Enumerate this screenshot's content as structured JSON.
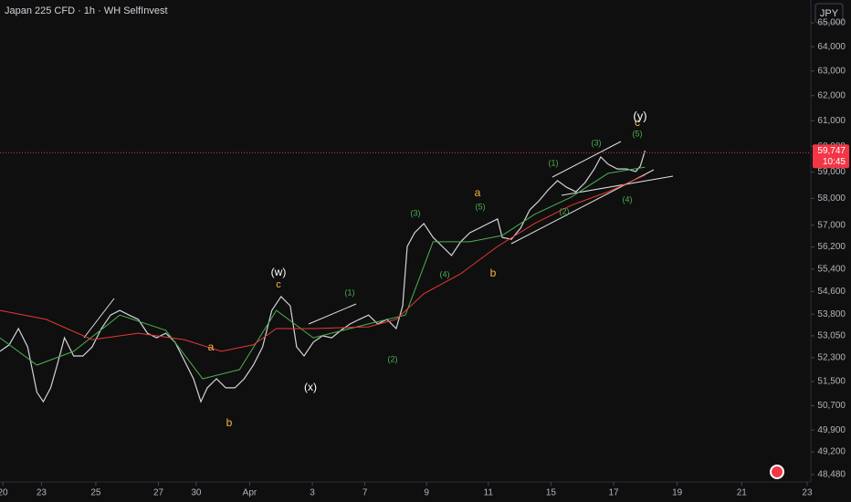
{
  "chart_data": {
    "type": "line",
    "title": "Japan 225 CFD · 1h · WH SelfInvest",
    "currency": "JPY",
    "log_scale": true,
    "xlim": [
      0,
      880
    ],
    "xticks": [
      {
        "value": 3,
        "label": "20"
      },
      {
        "value": 45,
        "label": "23"
      },
      {
        "value": 104,
        "label": "25"
      },
      {
        "value": 172,
        "label": "27"
      },
      {
        "value": 213,
        "label": "30"
      },
      {
        "value": 271,
        "label": "Apr"
      },
      {
        "value": 339,
        "label": "3"
      },
      {
        "value": 396,
        "label": "7"
      },
      {
        "value": 463,
        "label": "9"
      },
      {
        "value": 530,
        "label": "11"
      },
      {
        "value": 598,
        "label": "15"
      },
      {
        "value": 666,
        "label": "17"
      },
      {
        "value": 735,
        "label": "19"
      },
      {
        "value": 805,
        "label": "21"
      },
      {
        "value": 876,
        "label": "23"
      }
    ],
    "ylim": [
      48250,
      65970
    ],
    "yticks": [
      {
        "value": 48480,
        "label": "48,480"
      },
      {
        "value": 49200,
        "label": "49,200"
      },
      {
        "value": 49900,
        "label": "49,900"
      },
      {
        "value": 50700,
        "label": "50,700"
      },
      {
        "value": 51500,
        "label": "51,500"
      },
      {
        "value": 52300,
        "label": "52,300"
      },
      {
        "value": 53050,
        "label": "53,050"
      },
      {
        "value": 53800,
        "label": "53,800"
      },
      {
        "value": 54600,
        "label": "54,600"
      },
      {
        "value": 55400,
        "label": "55,400"
      },
      {
        "value": 56200,
        "label": "56,200"
      },
      {
        "value": 57000,
        "label": "57,000"
      },
      {
        "value": 58000,
        "label": "58,000"
      },
      {
        "value": 59000,
        "label": "59,000"
      },
      {
        "value": 60000,
        "label": "60,000"
      },
      {
        "value": 61000,
        "label": "61,000"
      },
      {
        "value": 62000,
        "label": "62,000"
      },
      {
        "value": 63000,
        "label": "63,000"
      },
      {
        "value": 64000,
        "label": "64,000"
      },
      {
        "value": 65000,
        "label": "65,000"
      }
    ],
    "series": [
      {
        "color": "#d1d4dc",
        "x": [
          0,
          10,
          20,
          30,
          40,
          47,
          55,
          62,
          70,
          80,
          90,
          100,
          110,
          120,
          130,
          140,
          150,
          160,
          170,
          180,
          190,
          200,
          210,
          218,
          225,
          235,
          245,
          255,
          265,
          275,
          285,
          295,
          305,
          315,
          322,
          330,
          340,
          350,
          360,
          370,
          380,
          390,
          400,
          410,
          420,
          430,
          437,
          442,
          450,
          460,
          470,
          480,
          490,
          500,
          510,
          520,
          530,
          540,
          545,
          555,
          565,
          575,
          585,
          595,
          605,
          615,
          625,
          635,
          645,
          652,
          660,
          670,
          680,
          690,
          695,
          700
        ],
        "values": [
          52520,
          52740,
          53300,
          52670,
          51140,
          50830,
          51290,
          52050,
          52980,
          52360,
          52360,
          52670,
          53300,
          53770,
          53930,
          53770,
          53620,
          53140,
          52980,
          53140,
          52830,
          52210,
          51590,
          50830,
          51290,
          51590,
          51290,
          51290,
          51590,
          52050,
          52670,
          53930,
          54420,
          54090,
          52670,
          52360,
          52830,
          53050,
          52980,
          53240,
          53460,
          53620,
          53770,
          53460,
          53620,
          53300,
          54090,
          56220,
          56720,
          57060,
          56550,
          56220,
          55890,
          56390,
          56720,
          56890,
          57060,
          57230,
          56550,
          56480,
          56890,
          57570,
          57910,
          58320,
          58670,
          58420,
          58250,
          58600,
          59120,
          59580,
          59300,
          59120,
          59120,
          59020,
          59230,
          59830
        ]
      },
      {
        "color": "#4caf50",
        "x": [
          0,
          40,
          80,
          130,
          180,
          220,
          260,
          300,
          340,
          400,
          440,
          470,
          510,
          545,
          580,
          620,
          660,
          700
        ],
        "values": [
          52980,
          52050,
          52520,
          53770,
          53240,
          51590,
          51900,
          53930,
          52980,
          53460,
          53770,
          56390,
          56390,
          56620,
          57400,
          58050,
          58950,
          59190
        ]
      },
      {
        "color": "#e53935",
        "x": [
          0,
          50,
          100,
          150,
          200,
          240,
          275,
          300,
          340,
          400,
          430,
          460,
          500,
          540,
          580,
          620,
          660,
          700
        ],
        "values": [
          53930,
          53620,
          52920,
          53140,
          52920,
          52520,
          52740,
          53300,
          53300,
          53360,
          53620,
          54520,
          55230,
          56220,
          57060,
          57740,
          58250,
          58880
        ]
      }
    ],
    "last_price": {
      "value": 59747,
      "label": "59,747",
      "time": "10:45",
      "color": "#f23645"
    },
    "annotations": [
      {
        "text": "(w)",
        "color": "#ffffff"
      },
      {
        "text": "c",
        "color": "#f5b642"
      },
      {
        "text": "a",
        "color": "#f5b642"
      },
      {
        "text": "b",
        "color": "#f5b642"
      },
      {
        "text": "(x)",
        "color": "#ffffff"
      },
      {
        "text": "(1)",
        "color": "#4caf50"
      },
      {
        "text": "(2)",
        "color": "#4caf50"
      },
      {
        "text": "(3)",
        "color": "#4caf50"
      },
      {
        "text": "(4)",
        "color": "#4caf50"
      },
      {
        "text": "(5)",
        "color": "#4caf50"
      },
      {
        "text": "a",
        "color": "#f5b642"
      },
      {
        "text": "b",
        "color": "#f5b642"
      },
      {
        "text": "(1)",
        "color": "#4caf50"
      },
      {
        "text": "(3)",
        "color": "#4caf50"
      },
      {
        "text": "(2)",
        "color": "#4caf50"
      },
      {
        "text": "(4)",
        "color": "#4caf50"
      },
      {
        "text": "(5)",
        "color": "#4caf50"
      },
      {
        "text": "c",
        "color": "#f5b642"
      },
      {
        "text": "(y)",
        "color": "#ffffff"
      }
    ]
  }
}
